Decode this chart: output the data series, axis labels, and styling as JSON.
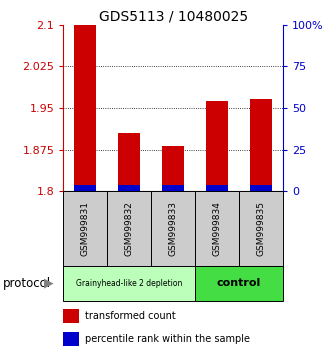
{
  "title": "GDS5113 / 10480025",
  "samples": [
    "GSM999831",
    "GSM999832",
    "GSM999833",
    "GSM999834",
    "GSM999835"
  ],
  "transformed_counts": [
    2.1,
    1.905,
    1.882,
    1.963,
    1.966
  ],
  "percentile_ranks": [
    1.5,
    2.5,
    2.0,
    2.0,
    2.5
  ],
  "ylim": [
    1.8,
    2.1
  ],
  "y_ticks": [
    1.8,
    1.875,
    1.95,
    2.025,
    2.1
  ],
  "y_tick_labels": [
    "1.8",
    "1.875",
    "1.95",
    "2.025",
    "2.1"
  ],
  "y2_ticks": [
    0,
    25,
    50,
    75,
    100
  ],
  "y2_tick_labels": [
    "0",
    "25",
    "50",
    "75",
    "100%"
  ],
  "percentile_ylim": [
    0,
    100
  ],
  "bar_color_red": "#cc0000",
  "bar_color_blue": "#0000cc",
  "group1_label": "Grainyhead-like 2 depletion",
  "group2_label": "control",
  "group1_color": "#bbffbb",
  "group2_color": "#44dd44",
  "group1_indices": [
    0,
    1,
    2
  ],
  "group2_indices": [
    3,
    4
  ],
  "protocol_label": "protocol",
  "legend_red": "transformed count",
  "legend_blue": "percentile rank within the sample",
  "sample_box_color": "#cccccc",
  "bar_width": 0.5,
  "title_fontsize": 10,
  "tick_fontsize": 8,
  "sample_fontsize": 6.5
}
